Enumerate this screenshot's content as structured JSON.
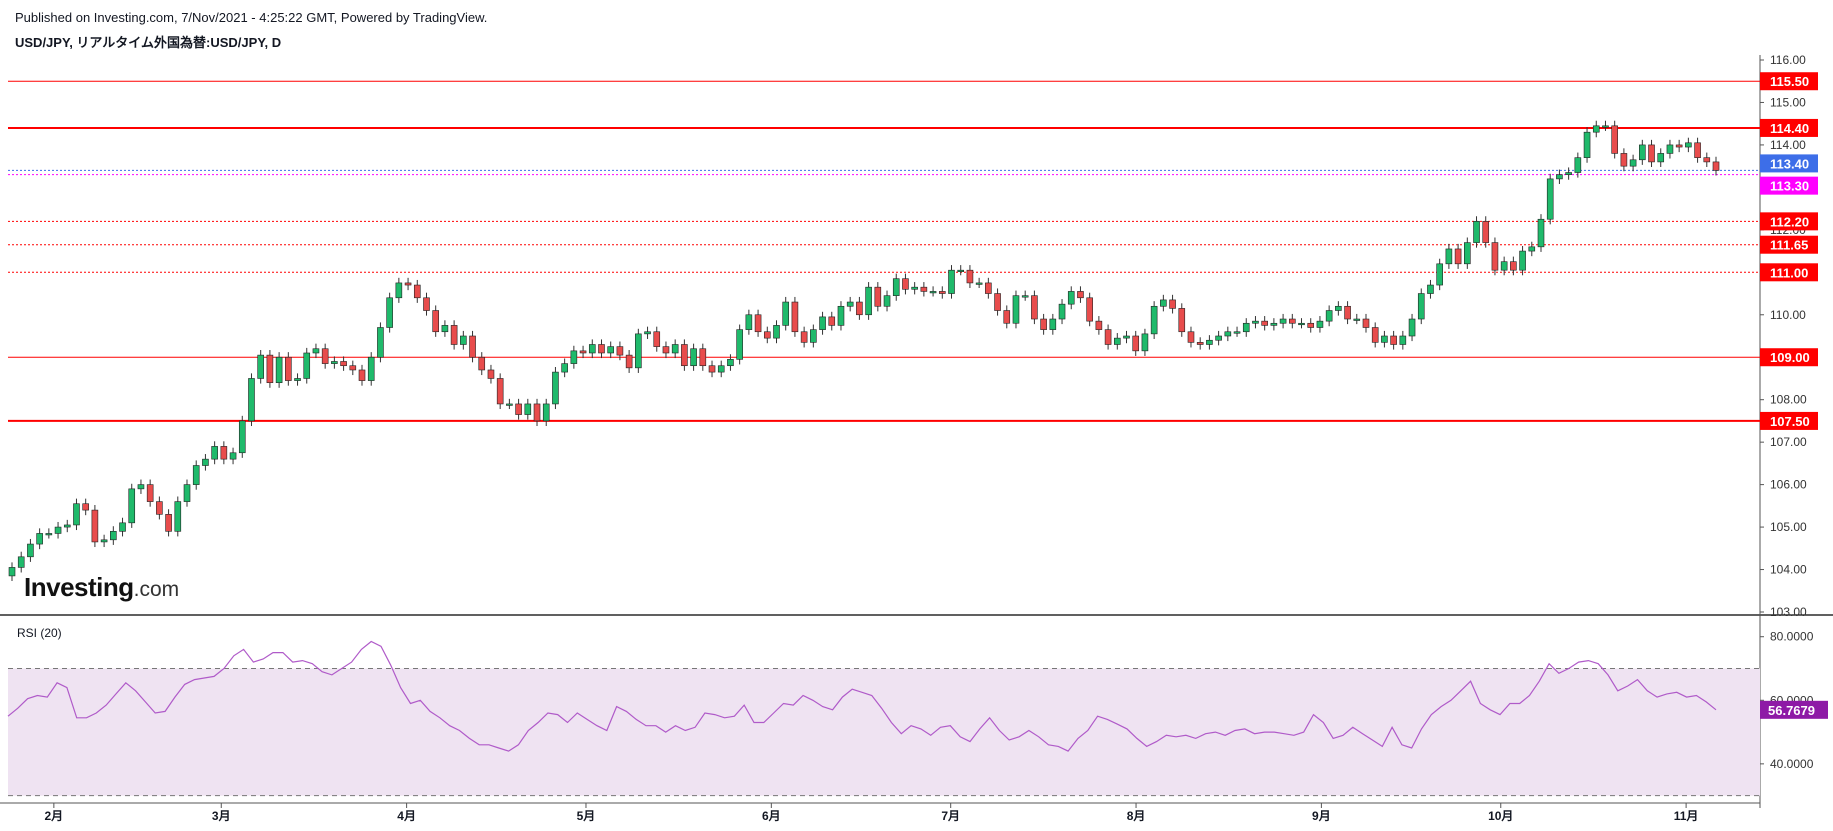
{
  "header": {
    "published": "Published on Investing.com, 7/Nov/2021 - 4:25:22 GMT, Powered by TradingView.",
    "symbol_line": "USD/JPY, リアルタイム外国為替:USD/JPY, D"
  },
  "logo": {
    "main": "Investing",
    "suffix": ".com"
  },
  "colors": {
    "up": "#26a69a",
    "up_fill": "#1fba6b",
    "down": "#ef5350",
    "down_fill": "#e84c4c",
    "level_line": "#ff0000",
    "current_price_badge": "#3d6ee8",
    "last_close_badge": "#ff00ff",
    "rsi_line": "#b05bc9",
    "rsi_band_fill": "#efe3f2",
    "rsi_badge": "#8e1aa6"
  },
  "chart_data": [
    {
      "type": "candlestick",
      "title": "USD/JPY, リアルタイム外国為替:USD/JPY, D",
      "y_axis_ticks": [
        "116.00",
        "115.00",
        "114.00",
        "113.00",
        "112.00",
        "111.00",
        "110.00",
        "109.00",
        "108.00",
        "107.00",
        "106.00",
        "105.00",
        "104.00",
        "103.00"
      ],
      "ylim": [
        103.0,
        116.0
      ],
      "x_axis_ticks": [
        "2月",
        "3月",
        "4月",
        "5月",
        "6月",
        "7月",
        "8月",
        "9月",
        "10月",
        "11月"
      ],
      "horizontal_levels": [
        {
          "value": 115.5,
          "label": "115.50",
          "style": "solid-thin"
        },
        {
          "value": 114.4,
          "label": "114.40",
          "style": "solid-thick"
        },
        {
          "value": 112.2,
          "label": "112.20",
          "style": "dotted"
        },
        {
          "value": 111.65,
          "label": "111.65",
          "style": "dotted"
        },
        {
          "value": 111.0,
          "label": "111.00",
          "style": "dotted"
        },
        {
          "value": 109.0,
          "label": "109.00",
          "style": "solid-thin"
        },
        {
          "value": 107.5,
          "label": "107.50",
          "style": "solid-thick"
        }
      ],
      "price_badges": [
        {
          "value": 113.4,
          "label": "113.40",
          "kind": "current-price"
        },
        {
          "value": 113.3,
          "label": "113.30",
          "kind": "last-close"
        }
      ],
      "closes": [
        104.05,
        104.3,
        104.6,
        104.85,
        104.85,
        105.0,
        105.05,
        105.55,
        105.4,
        104.65,
        104.7,
        104.9,
        105.1,
        105.9,
        106.0,
        105.6,
        105.3,
        104.9,
        105.6,
        106.0,
        106.45,
        106.6,
        106.9,
        106.6,
        106.75,
        107.5,
        108.5,
        109.05,
        108.4,
        109.0,
        108.45,
        108.5,
        109.1,
        109.2,
        108.85,
        108.9,
        108.8,
        108.7,
        108.45,
        109.0,
        109.7,
        110.4,
        110.75,
        110.7,
        110.4,
        110.1,
        109.6,
        109.75,
        109.3,
        109.5,
        109.0,
        108.7,
        108.5,
        107.9,
        107.9,
        107.65,
        107.9,
        107.5,
        107.9,
        108.65,
        108.85,
        109.15,
        109.1,
        109.3,
        109.1,
        109.25,
        109.05,
        108.75,
        109.55,
        109.6,
        109.25,
        109.1,
        109.3,
        108.8,
        109.2,
        108.8,
        108.65,
        108.8,
        108.95,
        109.65,
        110.0,
        109.6,
        109.45,
        109.75,
        110.3,
        109.6,
        109.35,
        109.65,
        109.95,
        109.75,
        110.2,
        110.3,
        110.0,
        110.65,
        110.2,
        110.45,
        110.85,
        110.6,
        110.65,
        110.55,
        110.55,
        110.5,
        111.05,
        111.05,
        110.75,
        110.75,
        110.5,
        110.1,
        109.8,
        110.45,
        110.45,
        109.9,
        109.65,
        109.9,
        110.25,
        110.55,
        110.4,
        109.85,
        109.65,
        109.3,
        109.45,
        109.5,
        109.15,
        109.55,
        110.2,
        110.35,
        110.15,
        109.6,
        109.35,
        109.3,
        109.4,
        109.5,
        109.6,
        109.6,
        109.8,
        109.85,
        109.75,
        109.8,
        109.9,
        109.8,
        109.8,
        109.7,
        109.85,
        110.1,
        110.2,
        109.9,
        109.9,
        109.7,
        109.35,
        109.5,
        109.3,
        109.5,
        109.9,
        110.5,
        110.7,
        111.2,
        111.55,
        111.2,
        111.7,
        112.2,
        111.7,
        111.05,
        111.25,
        111.05,
        111.5,
        111.6,
        112.25,
        113.2,
        113.3,
        113.35,
        113.7,
        114.3,
        114.45,
        114.45,
        113.8,
        113.5,
        113.65,
        114.0,
        113.6,
        113.8,
        114.0,
        113.95,
        114.05,
        113.7,
        113.6,
        113.4
      ],
      "series": [
        {
          "name": "RSI (20)",
          "values": [
            55.0,
            57.5,
            60.5,
            61.5,
            61.0,
            65.5,
            64.0,
            54.5,
            54.5,
            56.0,
            58.5,
            62.0,
            65.5,
            63.0,
            59.5,
            56.0,
            56.5,
            61.0,
            65.0,
            66.5,
            67.0,
            67.5,
            70.0,
            74.0,
            76.0,
            72.0,
            73.0,
            75.0,
            75.0,
            72.0,
            72.5,
            71.5,
            69.0,
            68.0,
            70.0,
            72.0,
            76.0,
            78.5,
            77.0,
            71.0,
            64.0,
            59.0,
            60.0,
            56.5,
            54.5,
            52.0,
            50.5,
            48.0,
            46.0,
            46.0,
            45.0,
            44.0,
            46.0,
            50.5,
            53.0,
            56.0,
            55.5,
            53.0,
            56.0,
            54.0,
            52.0,
            50.5,
            58.0,
            56.5,
            54.0,
            52.0,
            52.0,
            50.0,
            52.0,
            50.5,
            51.5,
            56.0,
            55.5,
            54.5,
            55.0,
            58.5,
            53.0,
            53.0,
            56.0,
            59.0,
            58.5,
            61.5,
            60.0,
            58.0,
            57.0,
            61.0,
            63.5,
            62.5,
            61.5,
            57.5,
            53.0,
            49.5,
            52.0,
            51.0,
            49.0,
            51.5,
            52.0,
            48.5,
            47.0,
            51.0,
            54.5,
            50.5,
            47.5,
            48.5,
            50.5,
            48.5,
            46.0,
            45.5,
            44.0,
            48.0,
            50.5,
            55.0,
            54.0,
            52.5,
            51.0,
            48.0,
            45.5,
            47.0,
            49.0,
            48.5,
            49.0,
            48.0,
            49.5,
            50.0,
            49.0,
            50.5,
            51.0,
            49.5,
            50.0,
            50.0,
            49.5,
            49.0,
            50.0,
            55.5,
            53.0,
            48.0,
            49.0,
            51.5,
            49.5,
            47.5,
            45.5,
            51.5,
            46.0,
            45.0,
            51.0,
            55.5,
            58.0,
            60.0,
            63.0,
            66.0,
            59.0,
            57.0,
            55.5,
            59.0,
            59.0,
            61.5,
            66.0,
            71.5,
            68.5,
            70.0,
            72.0,
            72.5,
            71.5,
            68.0,
            63.0,
            64.5,
            66.5,
            63.0,
            61.0,
            62.0,
            62.5,
            61.0,
            61.5,
            59.5,
            57.0
          ]
        }
      ],
      "rsi_ticks": [
        "80.0000",
        "60.0000",
        "40.0000"
      ],
      "rsi_ylim": [
        28,
        84
      ],
      "rsi_bands": [
        70,
        30
      ],
      "rsi_last_label": "56.7679",
      "rsi_title": "RSI (20)"
    }
  ]
}
